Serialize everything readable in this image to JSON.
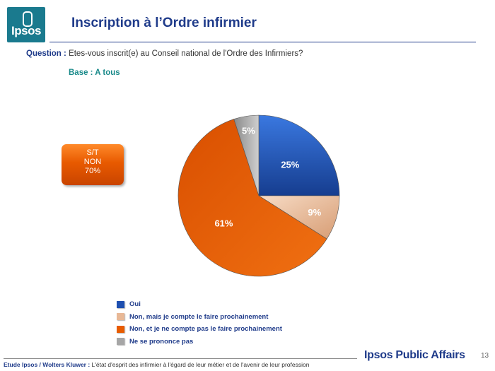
{
  "logo": {
    "text": "Ipsos"
  },
  "title": "Inscription à l’Ordre infirmier",
  "question": {
    "label": "Question :",
    "text": " Etes-vous inscrit(e) au Conseil national de l'Ordre des Infirmiers?"
  },
  "base": "Base : A tous",
  "summary_box": {
    "line1": "S/T",
    "line2": "NON",
    "line3": "70%"
  },
  "chart_data": {
    "type": "pie",
    "title": "Inscription à l’Ordre infirmier",
    "categories": [
      "Oui",
      "Non, mais je compte le faire prochainement",
      "Non, et je ne compte pas le faire prochainement",
      "Ne se prononce pas"
    ],
    "values": [
      25,
      9,
      61,
      5
    ],
    "labels": [
      "25%",
      "9%",
      "61%",
      "5%"
    ],
    "colors": [
      "#1e4fb0",
      "#e8b896",
      "#e85c00",
      "#a6a6a6"
    ],
    "legend_position": "bottom"
  },
  "footer": {
    "label": "Etude Ipsos  / Wolters Kluwer :",
    "text": " L'état d'esprit des infirmier à l'égard de leur métier et de l'avenir de leur profession"
  },
  "brand": "Ipsos Public Affairs",
  "page_number": "13"
}
